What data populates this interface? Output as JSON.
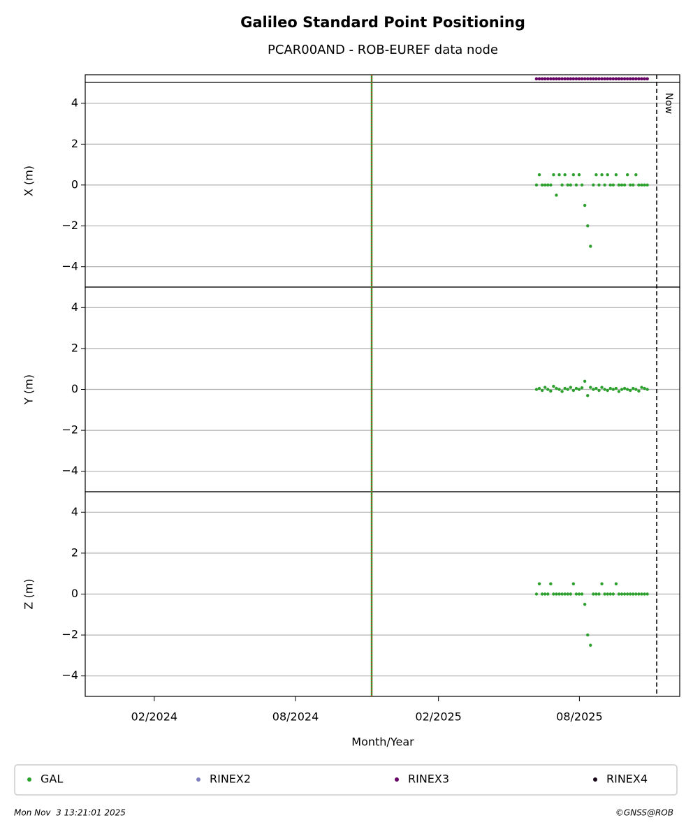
{
  "chart_data": {
    "type": "scatter",
    "title": "Galileo Standard Point Positioning",
    "subtitle": "PCAR00AND - ROB-EUREF data node",
    "xlabel": "Month/Year",
    "xlim": [
      2023.842,
      2025.934
    ],
    "xticks": [
      {
        "value": 2024.085,
        "label": "02/2024"
      },
      {
        "value": 2024.582,
        "label": "08/2024"
      },
      {
        "value": 2025.085,
        "label": "02/2025"
      },
      {
        "value": 2025.581,
        "label": "08/2025"
      }
    ],
    "grid": true,
    "legend": "bottom",
    "event_x": 2024.85,
    "now": {
      "x": 2025.853,
      "label": "Now"
    },
    "x": [
      2025.43,
      2025.44,
      2025.45,
      2025.46,
      2025.47,
      2025.48,
      2025.49,
      2025.5,
      2025.51,
      2025.52,
      2025.53,
      2025.54,
      2025.55,
      2025.56,
      2025.57,
      2025.58,
      2025.59,
      2025.6,
      2025.61,
      2025.62,
      2025.63,
      2025.64,
      2025.65,
      2025.66,
      2025.67,
      2025.68,
      2025.69,
      2025.7,
      2025.71,
      2025.72,
      2025.73,
      2025.74,
      2025.75,
      2025.76,
      2025.77,
      2025.78,
      2025.79,
      2025.8,
      2025.81,
      2025.82
    ],
    "series": [
      {
        "name": "GAL",
        "color": "#2ca02c"
      },
      {
        "name": "RINEX2",
        "color": "#7f7fbf",
        "values": []
      },
      {
        "name": "RINEX3",
        "color": "#660066",
        "values": [
          5.2,
          5.2,
          5.2,
          5.2,
          5.2,
          5.2,
          5.2,
          5.2,
          5.2,
          5.2,
          5.2,
          5.2,
          5.2,
          5.2,
          5.2,
          5.2,
          5.2,
          5.2,
          5.2,
          5.2,
          5.2,
          5.2,
          5.2,
          5.2,
          5.2,
          5.2,
          5.2,
          5.2,
          5.2,
          5.2,
          5.2,
          5.2,
          5.2,
          5.2,
          5.2,
          5.2,
          5.2,
          5.2,
          5.2,
          5.2
        ]
      },
      {
        "name": "RINEX4",
        "color": "#1a0a1a",
        "values": []
      }
    ],
    "panels": [
      {
        "ylabel": "X (m)",
        "ylim": [
          -5,
          5.4
        ],
        "yticks": [
          {
            "value": -4,
            "label": "−4"
          },
          {
            "value": -2,
            "label": "−2"
          },
          0,
          2,
          4
        ],
        "values": [
          0,
          0.5,
          0,
          0,
          0,
          0,
          0.5,
          -0.5,
          0.5,
          0,
          0.5,
          0,
          0,
          0.5,
          0,
          0.5,
          0,
          -1,
          -2,
          -3,
          0,
          0.5,
          0,
          0.5,
          0,
          0.5,
          0,
          0,
          0.5,
          0,
          0,
          0,
          0.5,
          0,
          0,
          0.5,
          0,
          0,
          0,
          0
        ]
      },
      {
        "ylabel": "Y (m)",
        "ylim": [
          -5,
          5
        ],
        "yticks": [
          {
            "value": -4,
            "label": "−4"
          },
          {
            "value": -2,
            "label": "−2"
          },
          0,
          2,
          4
        ],
        "values": [
          0,
          0.05,
          -0.05,
          0.1,
          0,
          -0.08,
          0.15,
          0.05,
          0,
          -0.1,
          0.05,
          0,
          0.1,
          -0.05,
          0.05,
          0,
          0.08,
          0.4,
          -0.3,
          0.1,
          0,
          0.05,
          -0.05,
          0.1,
          0,
          -0.05,
          0.05,
          0,
          0.05,
          -0.1,
          0,
          0.05,
          0,
          -0.05,
          0.05,
          0,
          -0.08,
          0.1,
          0.05,
          0
        ]
      },
      {
        "ylabel": "Z (m)",
        "ylim": [
          -5,
          5
        ],
        "yticks": [
          {
            "value": -4,
            "label": "−4"
          },
          {
            "value": -2,
            "label": "−2"
          },
          0,
          2,
          4
        ],
        "values": [
          0,
          0.5,
          0,
          0,
          0,
          0.5,
          0,
          0,
          0,
          0,
          0,
          0,
          0,
          0.5,
          0,
          0,
          0,
          -0.5,
          -2,
          -2.5,
          0,
          0,
          0,
          0.5,
          0,
          0,
          0,
          0,
          0.5,
          0,
          0,
          0,
          0,
          0,
          0,
          0,
          0,
          0,
          0,
          0
        ]
      }
    ],
    "footer_left": "Mon Nov  3 13:21:01 2025",
    "footer_right": "©GNSS@ROB"
  }
}
